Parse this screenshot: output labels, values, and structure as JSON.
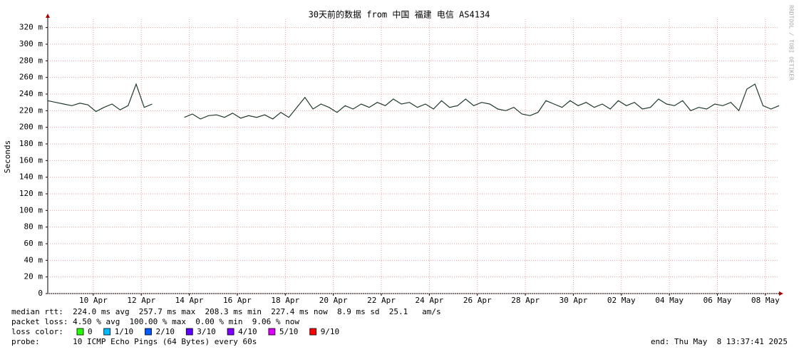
{
  "chart_data": {
    "type": "line",
    "title": "30天前的数据 from 中国 福建 电信 AS4134",
    "y_label": "Seconds",
    "watermark": "RRDTOOL / TOBI OETIKER",
    "xlim": [
      "2025-04-08T02:30:00",
      "2025-05-08T13:37:41"
    ],
    "xticks": [
      {
        "value": "2025-04-10T00:00:00",
        "label": "10 Apr"
      },
      {
        "value": "2025-04-12T00:00:00",
        "label": "12 Apr"
      },
      {
        "value": "2025-04-14T00:00:00",
        "label": "14 Apr"
      },
      {
        "value": "2025-04-16T00:00:00",
        "label": "16 Apr"
      },
      {
        "value": "2025-04-18T00:00:00",
        "label": "18 Apr"
      },
      {
        "value": "2025-04-20T00:00:00",
        "label": "20 Apr"
      },
      {
        "value": "2025-04-22T00:00:00",
        "label": "22 Apr"
      },
      {
        "value": "2025-04-24T00:00:00",
        "label": "24 Apr"
      },
      {
        "value": "2025-04-26T00:00:00",
        "label": "26 Apr"
      },
      {
        "value": "2025-04-28T00:00:00",
        "label": "28 Apr"
      },
      {
        "value": "2025-04-30T00:00:00",
        "label": "30 Apr"
      },
      {
        "value": "2025-05-02T00:00:00",
        "label": "02 May"
      },
      {
        "value": "2025-05-04T00:00:00",
        "label": "04 May"
      },
      {
        "value": "2025-05-06T00:00:00",
        "label": "06 May"
      },
      {
        "value": "2025-05-08T00:00:00",
        "label": "08 May"
      }
    ],
    "ylim": [
      0,
      0.33
    ],
    "yticks": [
      {
        "value": 0,
        "label": "0"
      },
      {
        "value": 0.02,
        "label": "20 m"
      },
      {
        "value": 0.04,
        "label": "40 m"
      },
      {
        "value": 0.06,
        "label": "60 m"
      },
      {
        "value": 0.08,
        "label": "80 m"
      },
      {
        "value": 0.1,
        "label": "100 m"
      },
      {
        "value": 0.12,
        "label": "120 m"
      },
      {
        "value": 0.14,
        "label": "140 m"
      },
      {
        "value": 0.16,
        "label": "160 m"
      },
      {
        "value": 0.18,
        "label": "180 m"
      },
      {
        "value": 0.2,
        "label": "200 m"
      },
      {
        "value": 0.22,
        "label": "220 m"
      },
      {
        "value": 0.24,
        "label": "240 m"
      },
      {
        "value": 0.26,
        "label": "260 m"
      },
      {
        "value": 0.28,
        "label": "280 m"
      },
      {
        "value": 0.3,
        "label": "300 m"
      },
      {
        "value": 0.32,
        "label": "320 m"
      }
    ],
    "grid": true,
    "series": [
      {
        "color": "#1f3a2a",
        "values": [
          0.232,
          0.23,
          0.228,
          0.226,
          0.229,
          0.227,
          0.219,
          0.224,
          0.228,
          0.221,
          0.226,
          0.252,
          0.224,
          0.228,
          null,
          null,
          null,
          0.212,
          0.216,
          0.21,
          0.214,
          0.215,
          0.212,
          0.217,
          0.211,
          0.214,
          0.212,
          0.215,
          0.21,
          0.218,
          0.212,
          0.224,
          0.236,
          0.222,
          0.228,
          0.224,
          0.218,
          0.226,
          0.222,
          0.228,
          0.224,
          0.23,
          0.226,
          0.234,
          0.228,
          0.23,
          0.224,
          0.228,
          0.222,
          0.232,
          0.224,
          0.226,
          0.234,
          0.226,
          0.23,
          0.228,
          0.222,
          0.22,
          0.224,
          0.216,
          0.214,
          0.218,
          0.232,
          0.228,
          0.224,
          0.232,
          0.226,
          0.23,
          0.224,
          0.228,
          0.222,
          0.232,
          0.226,
          0.23,
          0.222,
          0.224,
          0.234,
          0.228,
          0.226,
          0.232,
          0.22,
          0.224,
          0.222,
          0.228,
          0.226,
          0.23,
          0.22,
          0.246,
          0.252,
          0.226,
          0.222,
          0.226
        ]
      }
    ],
    "stats": [
      "median rtt:  224.0 ms avg  257.7 ms max  208.3 ms min  227.4 ms now  8.9 ms sd  25.1   am/s",
      "packet loss: 4.50 % avg  100.00 % max  0.00 % min  9.06 % now"
    ],
    "legend": {
      "title": "loss color:",
      "items": [
        {
          "name": "0",
          "color": "#26ff00"
        },
        {
          "name": "1/10",
          "color": "#00b8ff"
        },
        {
          "name": "2/10",
          "color": "#0059ff"
        },
        {
          "name": "3/10",
          "color": "#5e00ff"
        },
        {
          "name": "4/10",
          "color": "#7e00ff"
        },
        {
          "name": "5/10",
          "color": "#dd00ff"
        },
        {
          "name": "9/10",
          "color": "#ff0000"
        }
      ]
    },
    "probe": "probe:       10 ICMP Echo Pings (64 Bytes) every 60s",
    "end": "end: Thu May  8 13:37:41 2025"
  }
}
